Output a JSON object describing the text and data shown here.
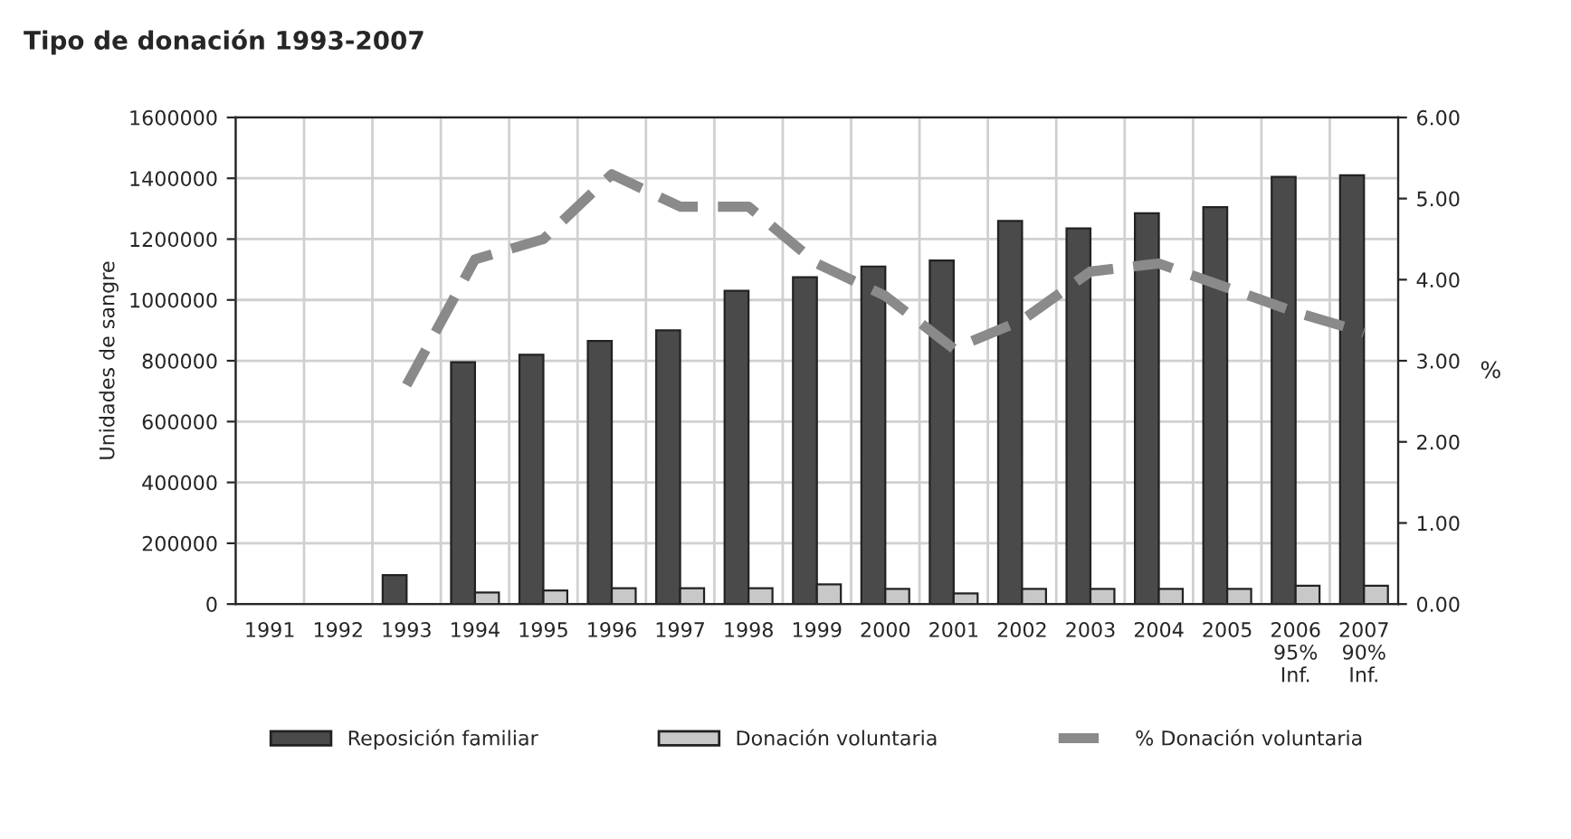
{
  "chart_data": {
    "type": "bar",
    "title": "Tipo de donación 1993-2007",
    "ylabel": "Unidades de sangre",
    "y2label": "%",
    "categories": [
      "1991",
      "1992",
      "1993",
      "1994",
      "1995",
      "1996",
      "1997",
      "1998",
      "1999",
      "2000",
      "2001",
      "2002",
      "2003",
      "2004",
      "2005",
      "2006\n95%\nInf.",
      "2007\n90%\nInf."
    ],
    "series": [
      {
        "name": "Reposición familiar",
        "color": "#4a4a4a",
        "values": [
          null,
          null,
          95000,
          795000,
          820000,
          865000,
          900000,
          1030000,
          1075000,
          1110000,
          1130000,
          1260000,
          1235000,
          1285000,
          1305000,
          1405000,
          1410000
        ]
      },
      {
        "name": "Donación voluntaria",
        "color": "#c8c8c8",
        "values": [
          null,
          null,
          null,
          38000,
          45000,
          52000,
          52000,
          52000,
          65000,
          50000,
          35000,
          50000,
          50000,
          50000,
          50000,
          60000,
          60000
        ]
      },
      {
        "name": "% Donación voluntaria",
        "type": "line",
        "axis": "y2",
        "color": "#8a8a8a",
        "line_style": "dashed",
        "values": [
          null,
          null,
          2.7,
          4.25,
          4.5,
          5.3,
          4.9,
          4.9,
          4.2,
          3.8,
          3.15,
          3.5,
          4.1,
          4.2,
          3.9,
          3.6,
          3.35
        ]
      }
    ],
    "ylim": [
      0,
      1600000
    ],
    "yticks": [
      0,
      200000,
      400000,
      600000,
      800000,
      1000000,
      1200000,
      1400000,
      1600000
    ],
    "y2lim": [
      0,
      6
    ],
    "y2ticks": [
      {
        "value": 0,
        "label": "0.00"
      },
      {
        "value": 1,
        "label": "1.00"
      },
      {
        "value": 2,
        "label": "2.00"
      },
      {
        "value": 3,
        "label": "3.00"
      },
      {
        "value": 4,
        "label": "4.00"
      },
      {
        "value": 5,
        "label": "5.00"
      },
      {
        "value": 6,
        "label": "6.00"
      }
    ],
    "grid": true,
    "legend": "bottom"
  }
}
